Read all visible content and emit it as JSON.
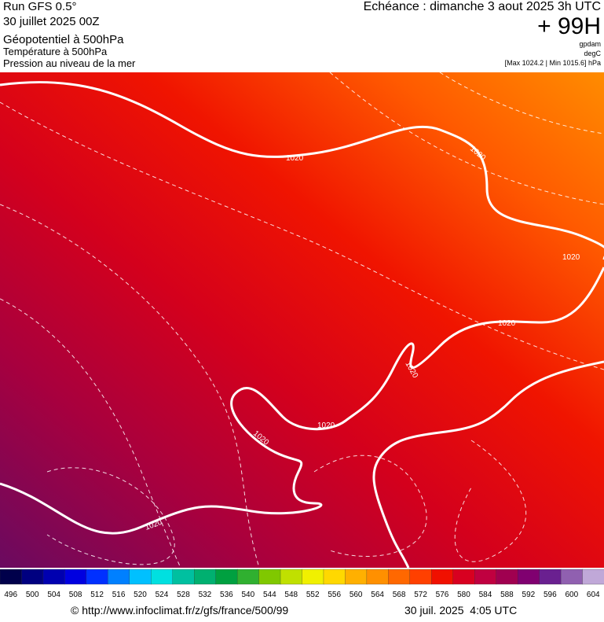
{
  "header": {
    "run": "Run GFS 0.5°",
    "date": "30 juillet 2025 00Z",
    "layer1": "Géopotentiel à 500hPa",
    "layer2": "Température à 500hPa",
    "layer3": "Pression au niveau de la mer",
    "valid": "Echéance : dimanche 3 aout 2025 3h UTC",
    "lead": "+ 99H",
    "unit1": "gpdam",
    "unit2": "degC",
    "range": "[Max 1024.2 | Min 1015.6] hPa"
  },
  "isobar_labels": [
    "1020",
    "1020",
    "1020",
    "1020",
    "1020",
    "1020",
    "1020",
    "1020"
  ],
  "scale": {
    "values": [
      496,
      500,
      504,
      508,
      512,
      516,
      520,
      524,
      528,
      532,
      536,
      540,
      544,
      548,
      552,
      556,
      560,
      564,
      568,
      572,
      576,
      580,
      584,
      588,
      592,
      596,
      600,
      604
    ],
    "colors": [
      "#00004b",
      "#000080",
      "#0000b0",
      "#0000e0",
      "#0030ff",
      "#0080ff",
      "#00c0ff",
      "#00e0e0",
      "#00c0a0",
      "#00b070",
      "#00a040",
      "#30b030",
      "#80c800",
      "#c0e000",
      "#f0f000",
      "#ffd800",
      "#ffb000",
      "#ff9000",
      "#ff6800",
      "#ff4000",
      "#f01000",
      "#d80020",
      "#c00040",
      "#a00050",
      "#800070",
      "#6a2090",
      "#9060b0",
      "#c0a8d8"
    ]
  },
  "footer": {
    "source": "© http://www.infoclimat.fr/z/gfs/france/500/99",
    "generated": "30 juil. 2025  4:05 UTC"
  }
}
